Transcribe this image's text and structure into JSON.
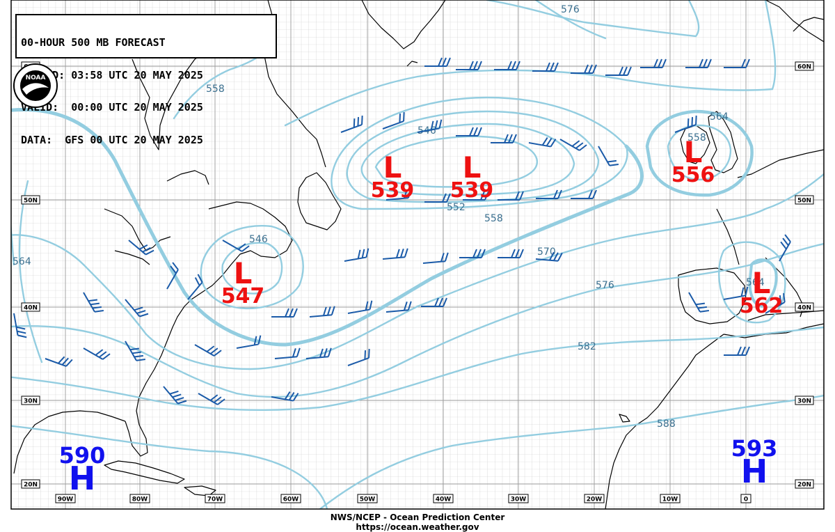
{
  "header": {
    "line1": "00-HOUR 500 MB FORECAST",
    "line2": "ISSUED: 03:58 UTC 20 MAY 2025",
    "line3": "VALID:  00:00 UTC 20 MAY 2025",
    "line4": "DATA:  GFS 00 UTC 20 MAY 2025"
  },
  "logo": {
    "text": "NOAA"
  },
  "footer": {
    "agency": "NWS/NCEP - Ocean Prediction Center",
    "url": "https://ocean.weather.gov"
  },
  "lon_labels": [
    "90W",
    "80W",
    "70W",
    "60W",
    "50W",
    "40W",
    "30W",
    "20W",
    "10W",
    "0"
  ],
  "lat_labels": [
    "60N",
    "50N",
    "40N",
    "30N",
    "20N"
  ],
  "contour_labels": [
    "576",
    "558",
    "546",
    "552",
    "558",
    "570",
    "576",
    "582",
    "588",
    "564",
    "564",
    "558",
    "546",
    "564"
  ],
  "pressure_centers": [
    {
      "type": "L",
      "value": "539",
      "kind": "low"
    },
    {
      "type": "L",
      "value": "539",
      "kind": "low"
    },
    {
      "type": "L",
      "value": "556",
      "kind": "low"
    },
    {
      "type": "L",
      "value": "547",
      "kind": "low"
    },
    {
      "type": "L",
      "value": "562",
      "kind": "low"
    },
    {
      "type": "H",
      "value": "590",
      "kind": "high"
    },
    {
      "type": "H",
      "value": "593",
      "kind": "high"
    }
  ],
  "colors": {
    "low": "#ee1111",
    "high": "#1111ee",
    "contour": "#93cde0",
    "barb": "#1a5aa8",
    "grid": "#b5b5b5",
    "coast": "#000000"
  }
}
